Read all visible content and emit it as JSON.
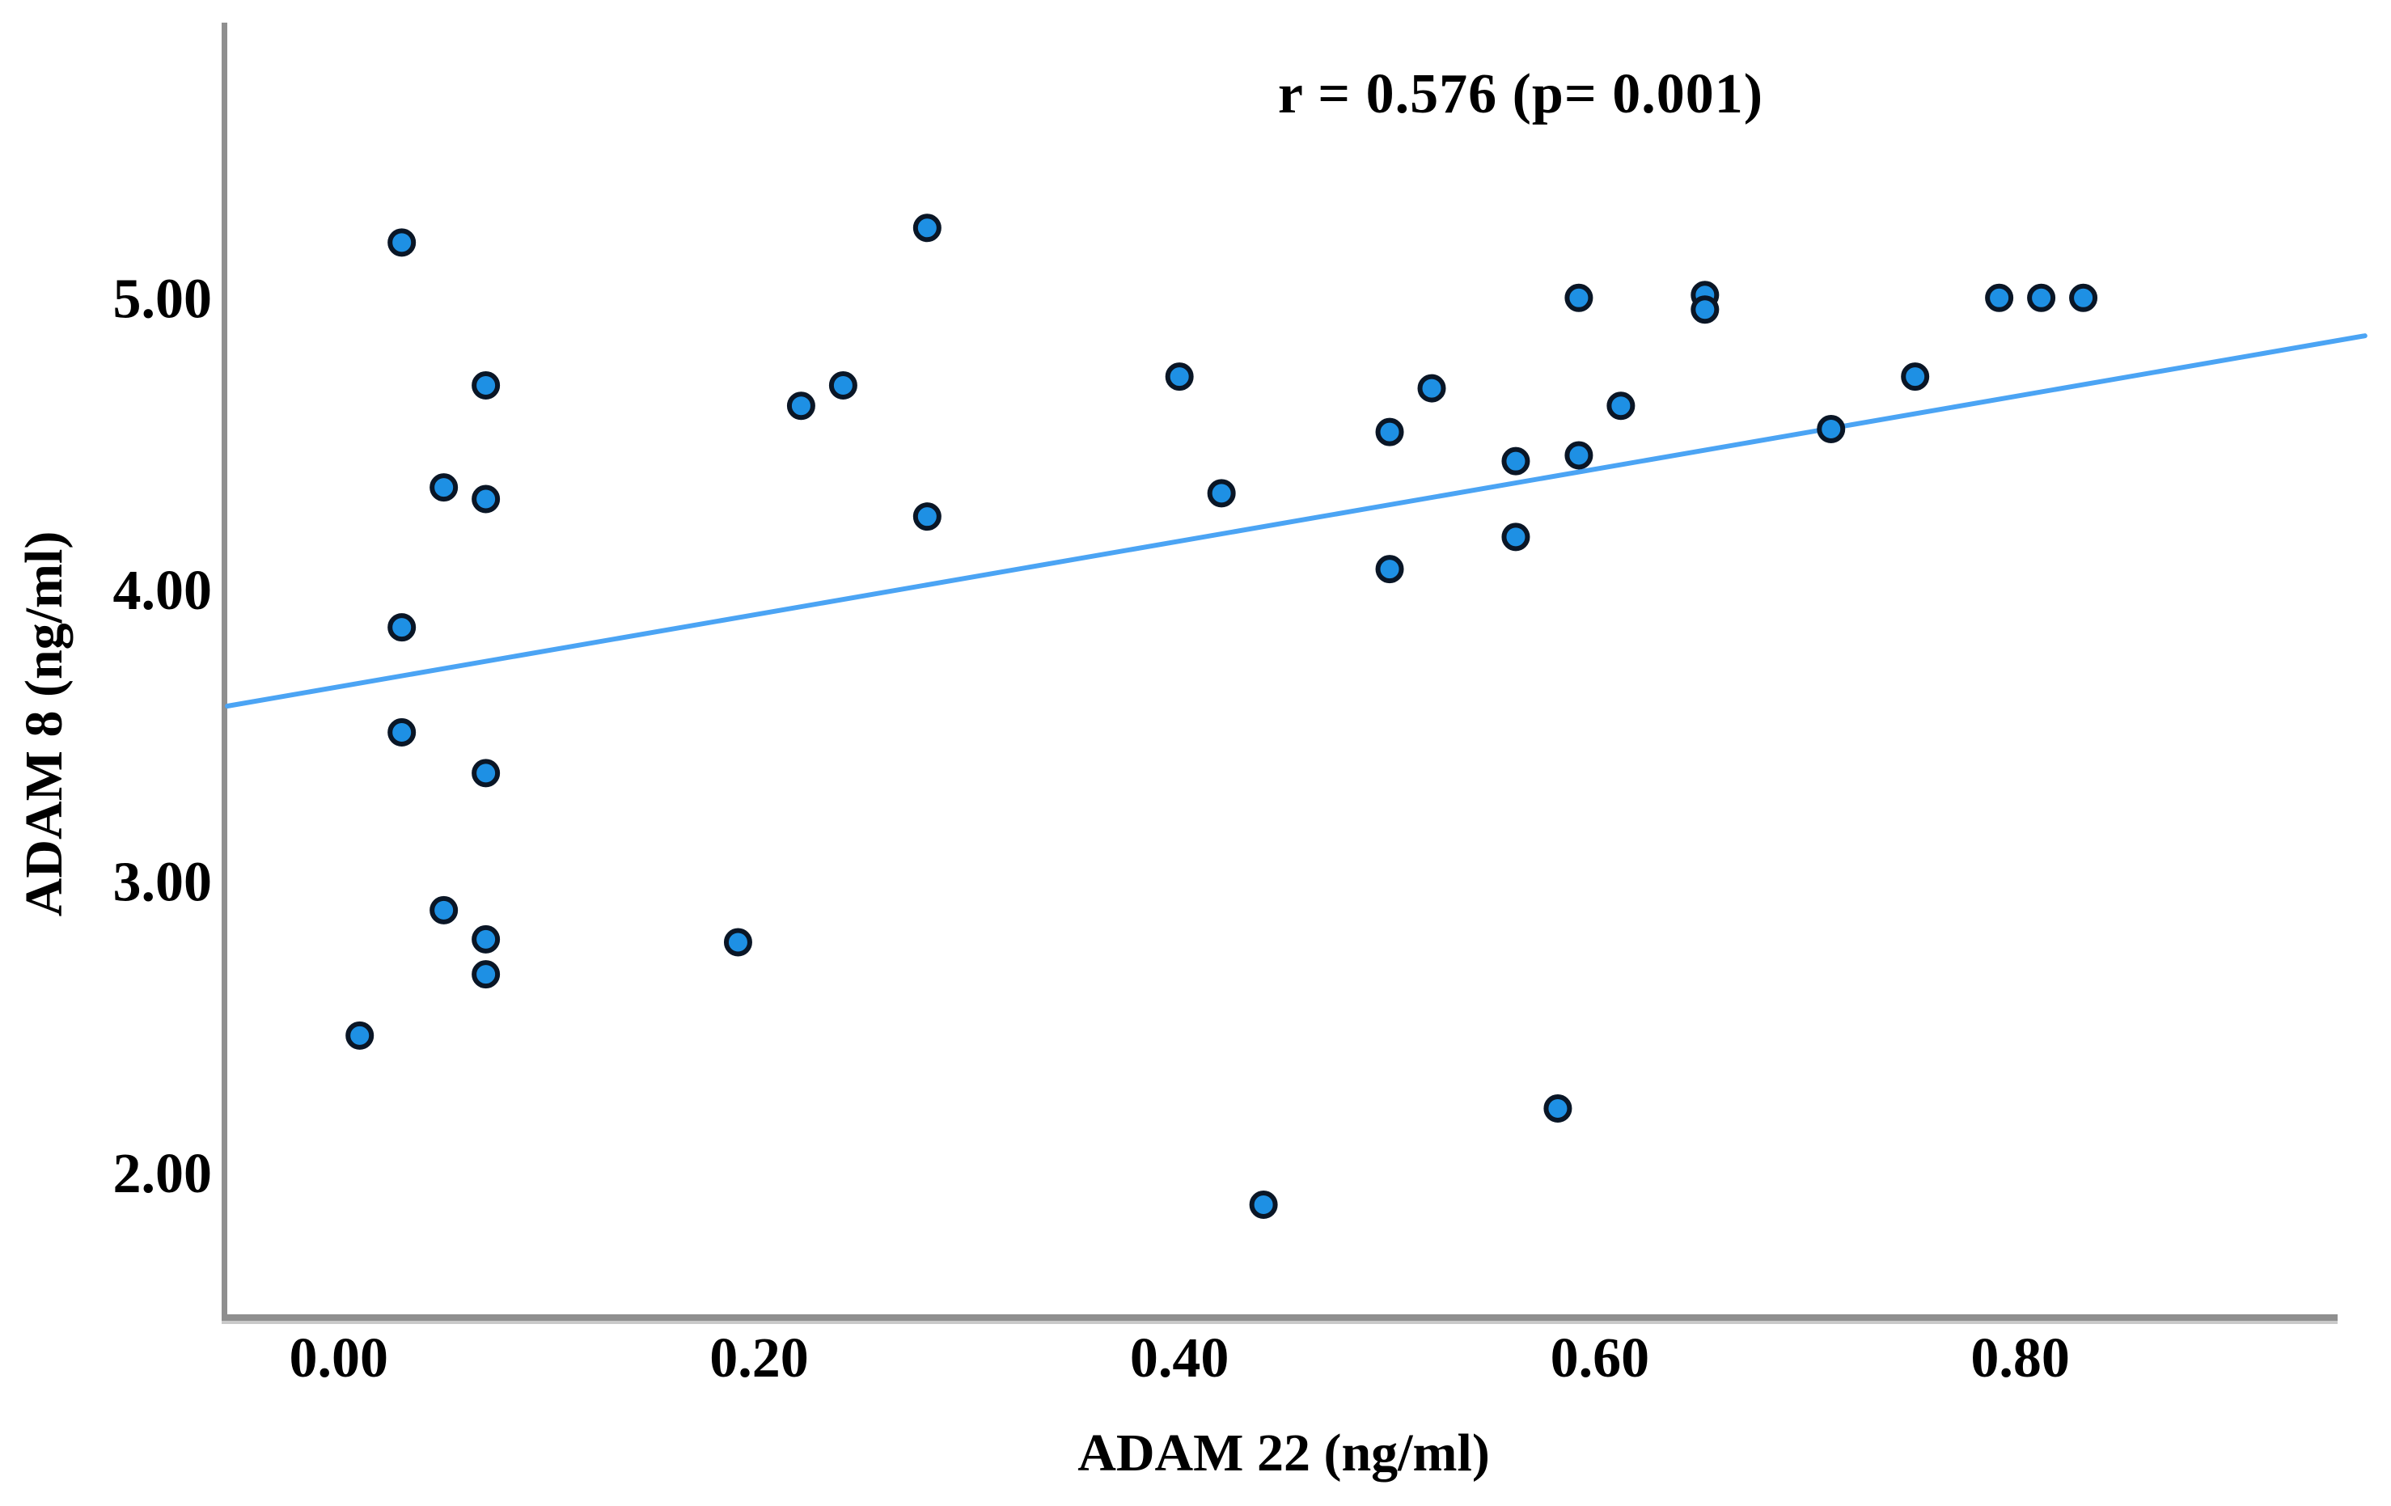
{
  "figure": {
    "annotation": "r = 0.576 (p= 0.001)",
    "x_axis_title": "ADAM 22 (ng/ml)",
    "y_axis_title": "ADAM 8 (ng/ml)"
  },
  "colors": {
    "background": "#FFFFFF",
    "text": "#000000",
    "marker_fill": "#1E90E4",
    "marker_edge": "#0A1626",
    "trend_line": "#4BA4F4",
    "axis_line": "#8F8F8F",
    "axis_line_light": "#C9C9C9"
  },
  "chart_data": {
    "type": "scatter",
    "title": "",
    "annotation": "r = 0.576 (p= 0.001)",
    "correlation_r": 0.576,
    "p_value": 0.001,
    "xlabel": "ADAM 22 (ng/ml)",
    "ylabel": "ADAM 8 (ng/ml)",
    "grid": false,
    "legend_position": "none",
    "xlim": [
      -0.053,
      0.951
    ],
    "ylim": [
      1.514,
      5.944
    ],
    "x_ticks": [
      0.0,
      0.2,
      0.4,
      0.6,
      0.8
    ],
    "x_tick_labels": [
      "0.00",
      "0.20",
      "0.40",
      "0.60",
      "0.80"
    ],
    "y_ticks": [
      2,
      3,
      4,
      5
    ],
    "y_tick_labels": [
      "2.00",
      "3.00",
      "4.00",
      "5.00"
    ],
    "points": [
      [
        0.03,
        5.19
      ],
      [
        0.07,
        4.7
      ],
      [
        0.05,
        4.35
      ],
      [
        0.07,
        4.31
      ],
      [
        0.03,
        3.87
      ],
      [
        0.03,
        3.51
      ],
      [
        0.07,
        3.37
      ],
      [
        0.05,
        2.9
      ],
      [
        0.07,
        2.8
      ],
      [
        0.07,
        2.68
      ],
      [
        0.01,
        2.47
      ],
      [
        0.28,
        5.24
      ],
      [
        0.24,
        4.7
      ],
      [
        0.22,
        4.63
      ],
      [
        0.28,
        4.25
      ],
      [
        0.19,
        2.79
      ],
      [
        0.4,
        4.73
      ],
      [
        0.42,
        4.33
      ],
      [
        0.44,
        1.89
      ],
      [
        0.5,
        4.54
      ],
      [
        0.5,
        4.07
      ],
      [
        0.52,
        4.69
      ],
      [
        0.56,
        4.44
      ],
      [
        0.56,
        4.18
      ],
      [
        0.58,
        2.22
      ],
      [
        0.59,
        5.0
      ],
      [
        0.59,
        4.46
      ],
      [
        0.61,
        4.63
      ],
      [
        0.65,
        5.01
      ],
      [
        0.65,
        4.96
      ],
      [
        0.71,
        4.55
      ],
      [
        0.75,
        4.73
      ],
      [
        0.79,
        5.0
      ],
      [
        0.81,
        5.0
      ],
      [
        0.83,
        5.0
      ]
    ],
    "trendline": {
      "x1": -0.053,
      "y1": 3.6,
      "x2": 0.964,
      "y2": 4.87
    }
  }
}
